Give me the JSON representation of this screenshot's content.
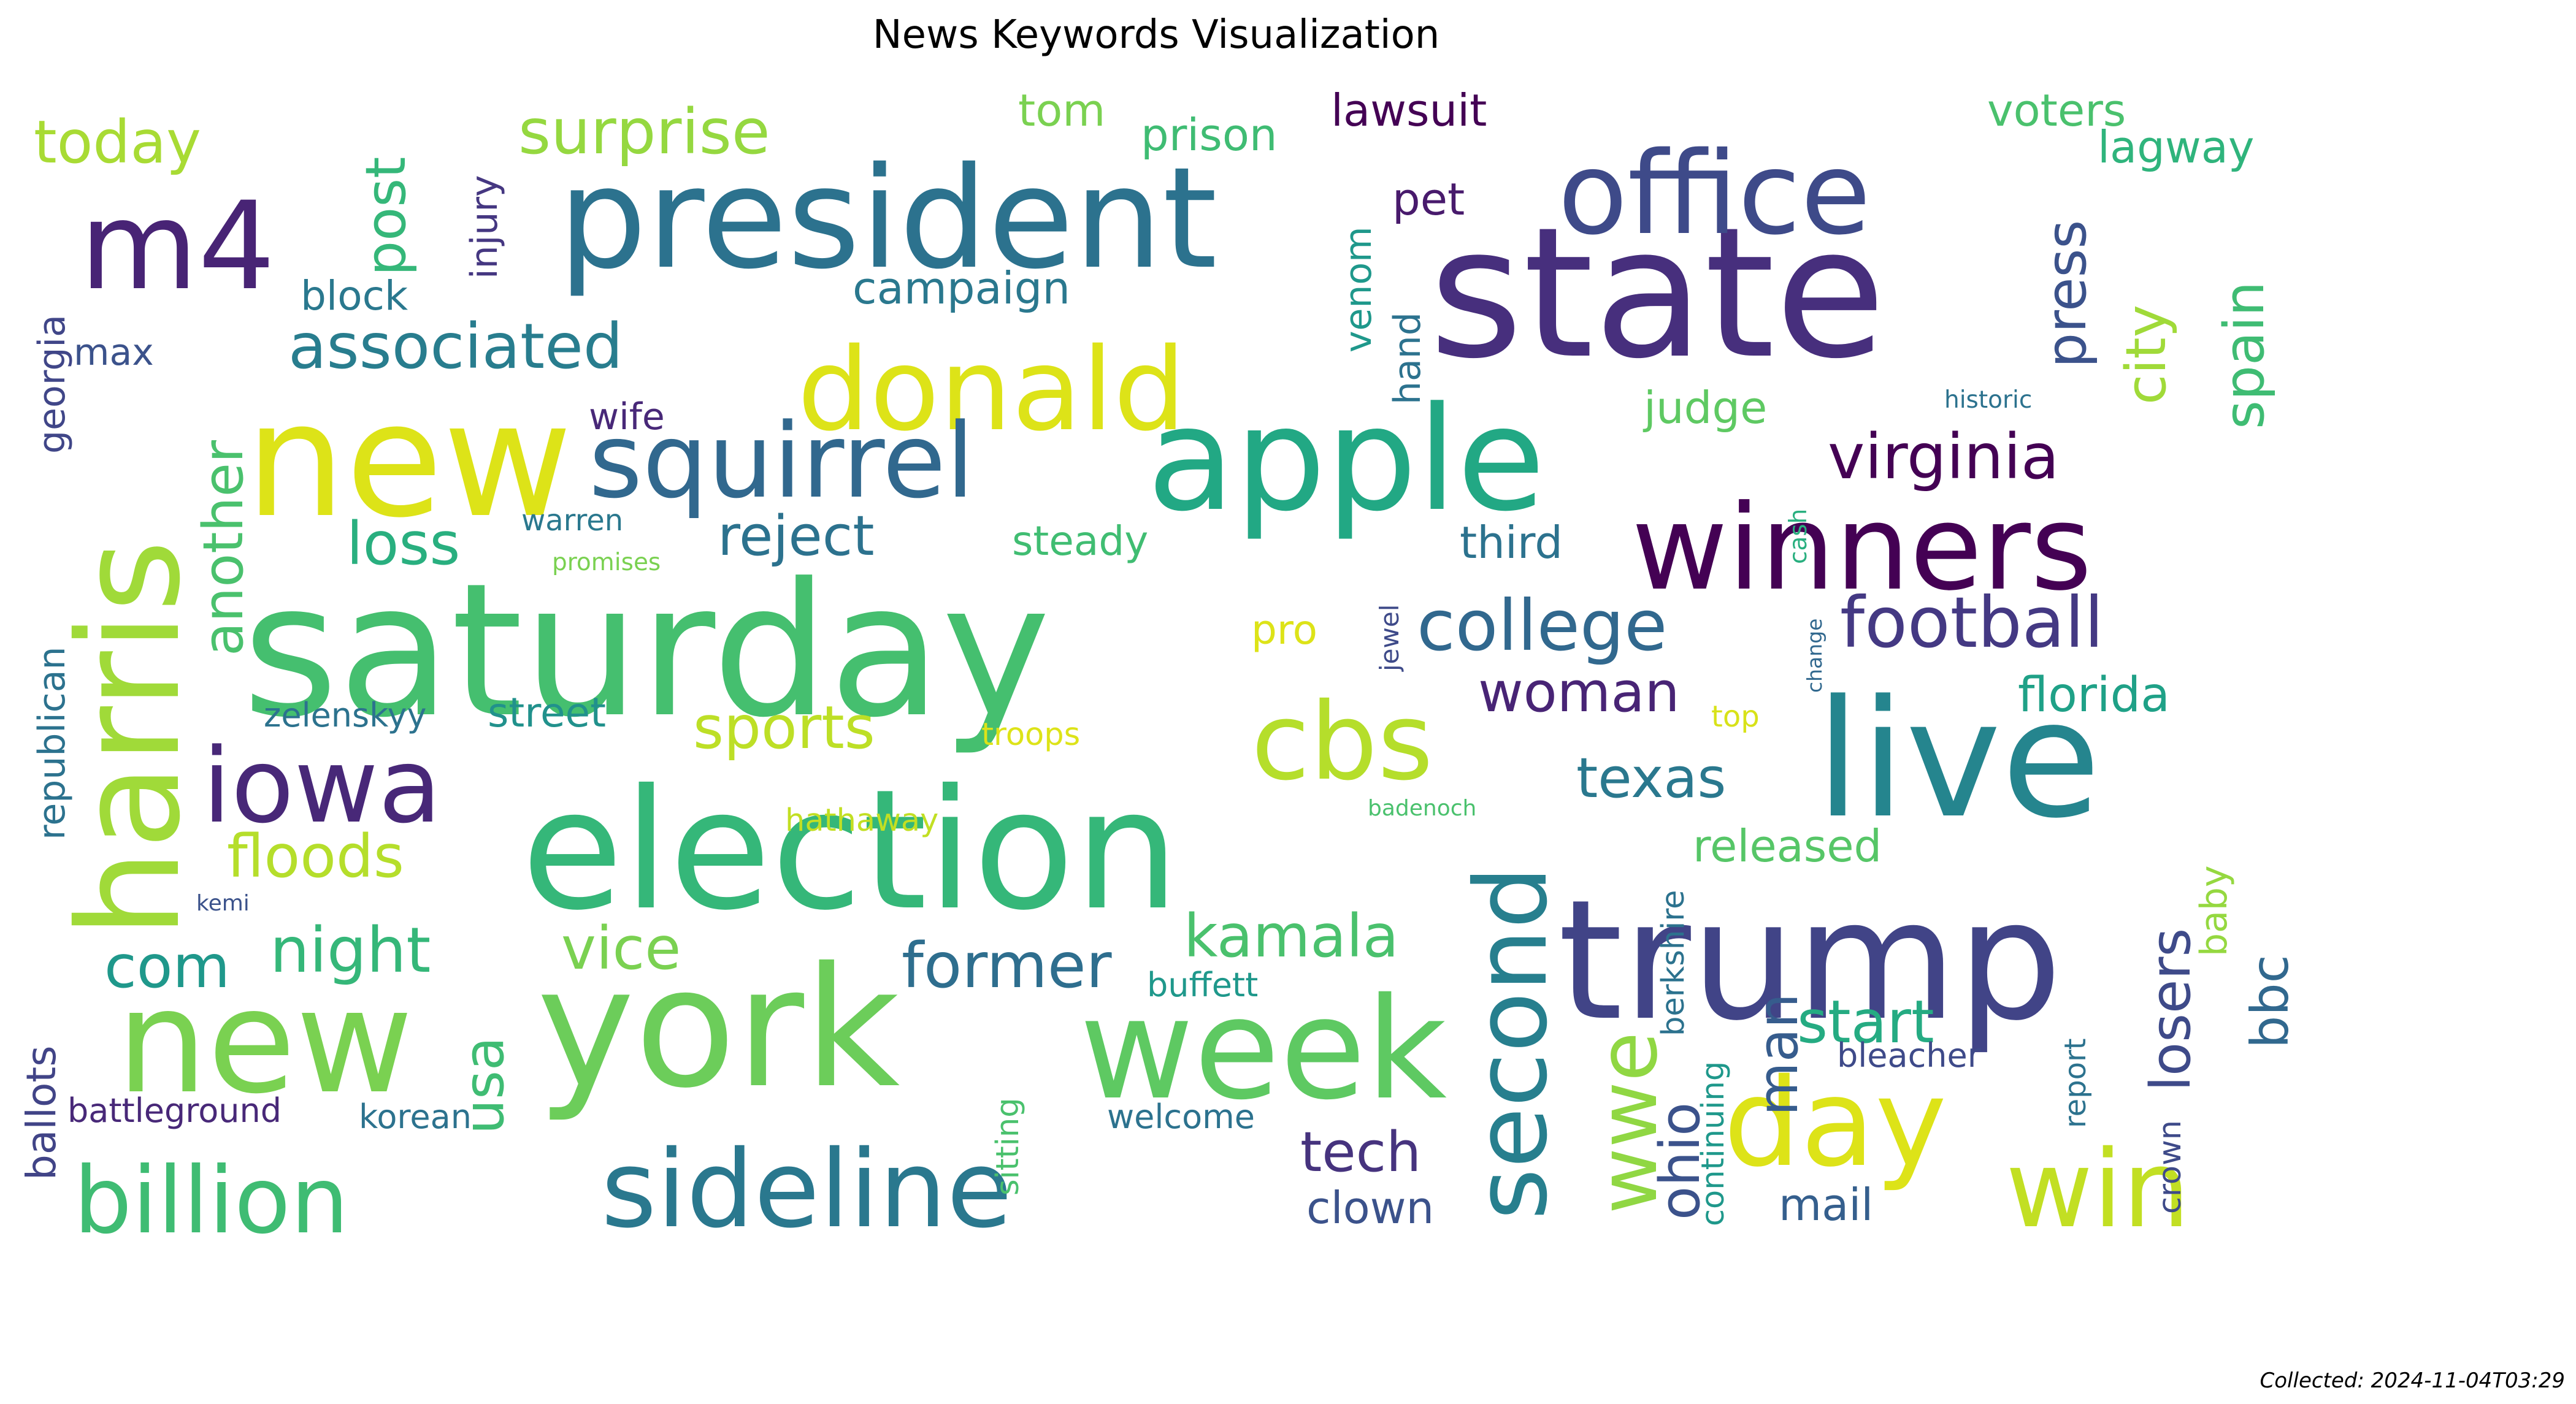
{
  "chart_data": {
    "type": "wordcloud",
    "title": "News Keywords Visualization",
    "colormap": "viridis",
    "words": [
      {
        "text": "saturday",
        "size": 1.0,
        "color": "#45bf6f"
      },
      {
        "text": "state",
        "size": 0.98,
        "color": "#472f7d"
      },
      {
        "text": "new",
        "size": 0.86,
        "color": "#dde318"
      },
      {
        "text": "york",
        "size": 0.9,
        "color": "#6ccd5a"
      },
      {
        "text": "election",
        "size": 0.9,
        "color": "#35b779"
      },
      {
        "text": "live",
        "size": 0.88,
        "color": "#25858e"
      },
      {
        "text": "trump",
        "size": 0.9,
        "color": "#414487"
      },
      {
        "text": "president",
        "size": 0.76,
        "color": "#2c728e"
      },
      {
        "text": "apple",
        "size": 0.78,
        "color": "#22a884"
      },
      {
        "text": "new",
        "size": 0.78,
        "color": "#7ad151"
      },
      {
        "text": "week",
        "size": 0.76,
        "color": "#5ec962"
      },
      {
        "text": "harris",
        "size": 0.76,
        "color": "#a0da39"
      },
      {
        "text": "office",
        "size": 0.62,
        "color": "#3e4a89"
      },
      {
        "text": "m4",
        "size": 0.66,
        "color": "#482475"
      },
      {
        "text": "winners",
        "size": 0.64,
        "color": "#440154"
      },
      {
        "text": "donald",
        "size": 0.62,
        "color": "#dde318"
      },
      {
        "text": "squirrel",
        "size": 0.56,
        "color": "#31688e"
      },
      {
        "text": "sideline",
        "size": 0.58,
        "color": "#2a788e"
      },
      {
        "text": "day",
        "size": 0.66,
        "color": "#dde318"
      },
      {
        "text": "win",
        "size": 0.58,
        "color": "#c2df23"
      },
      {
        "text": "cbs",
        "size": 0.58,
        "color": "#b5de2b"
      },
      {
        "text": "iowa",
        "size": 0.56,
        "color": "#482878"
      },
      {
        "text": "second",
        "size": 0.54,
        "color": "#277f8e"
      },
      {
        "text": "billion",
        "size": 0.5,
        "color": "#3fbc73"
      },
      {
        "text": "wwe",
        "size": 0.44,
        "color": "#90d743"
      },
      {
        "text": "college",
        "size": 0.38,
        "color": "#31688e"
      },
      {
        "text": "football",
        "size": 0.38,
        "color": "#443983"
      },
      {
        "text": "virginia",
        "size": 0.34,
        "color": "#440154"
      },
      {
        "text": "associated",
        "size": 0.34,
        "color": "#287d8e"
      },
      {
        "text": "surprise",
        "size": 0.34,
        "color": "#95d840"
      },
      {
        "text": "today",
        "size": 0.32,
        "color": "#a8db34"
      },
      {
        "text": "former",
        "size": 0.34,
        "color": "#2e6e8e"
      },
      {
        "text": "kamala",
        "size": 0.32,
        "color": "#4ac16d"
      },
      {
        "text": "night",
        "size": 0.34,
        "color": "#35b779"
      },
      {
        "text": "com",
        "size": 0.32,
        "color": "#1f988b"
      },
      {
        "text": "vice",
        "size": 0.32,
        "color": "#7ad151"
      },
      {
        "text": "floods",
        "size": 0.32,
        "color": "#b5de2b"
      },
      {
        "text": "sports",
        "size": 0.32,
        "color": "#bddf26"
      },
      {
        "text": "texas",
        "size": 0.3,
        "color": "#2a788e"
      },
      {
        "text": "woman",
        "size": 0.3,
        "color": "#482475"
      },
      {
        "text": "tech",
        "size": 0.3,
        "color": "#46337e"
      },
      {
        "text": "start",
        "size": 0.32,
        "color": "#25ab82"
      },
      {
        "text": "loss",
        "size": 0.32,
        "color": "#29af7f"
      },
      {
        "text": "reject",
        "size": 0.3,
        "color": "#2c728e"
      },
      {
        "text": "usa",
        "size": 0.3,
        "color": "#3fbc73"
      },
      {
        "text": "another",
        "size": 0.3,
        "color": "#4ac16d"
      },
      {
        "text": "post",
        "size": 0.3,
        "color": "#35b779"
      },
      {
        "text": "press",
        "size": 0.3,
        "color": "#3b528b"
      },
      {
        "text": "city",
        "size": 0.3,
        "color": "#a0da39"
      },
      {
        "text": "spain",
        "size": 0.3,
        "color": "#3fbc73"
      },
      {
        "text": "losers",
        "size": 0.3,
        "color": "#3e4a89"
      },
      {
        "text": "ohio",
        "size": 0.3,
        "color": "#3b528b"
      },
      {
        "text": "man",
        "size": 0.3,
        "color": "#365c8d"
      },
      {
        "text": "bbc",
        "size": 0.28,
        "color": "#31688e"
      },
      {
        "text": "florida",
        "size": 0.26,
        "color": "#1fa187"
      },
      {
        "text": "released",
        "size": 0.24,
        "color": "#56c667"
      },
      {
        "text": "mail",
        "size": 0.24,
        "color": "#355f8d"
      },
      {
        "text": "clown",
        "size": 0.24,
        "color": "#3b528b"
      },
      {
        "text": "voters",
        "size": 0.24,
        "color": "#4ac16d"
      },
      {
        "text": "lagway",
        "size": 0.24,
        "color": "#2fb47c"
      },
      {
        "text": "lawsuit",
        "size": 0.24,
        "color": "#440154"
      },
      {
        "text": "campaign",
        "size": 0.24,
        "color": "#2a788e"
      },
      {
        "text": "tom",
        "size": 0.24,
        "color": "#7ad151"
      },
      {
        "text": "prison",
        "size": 0.24,
        "color": "#3fbc73"
      },
      {
        "text": "pet",
        "size": 0.24,
        "color": "#481a6c"
      },
      {
        "text": "judge",
        "size": 0.24,
        "color": "#5ec962"
      },
      {
        "text": "third",
        "size": 0.24,
        "color": "#2c728e"
      },
      {
        "text": "steady",
        "size": 0.22,
        "color": "#40bd72"
      },
      {
        "text": "street",
        "size": 0.22,
        "color": "#21918c"
      },
      {
        "text": "block",
        "size": 0.22,
        "color": "#2a788e"
      },
      {
        "text": "max",
        "size": 0.2,
        "color": "#3b528b"
      },
      {
        "text": "wife",
        "size": 0.2,
        "color": "#482878"
      },
      {
        "text": "georgia",
        "size": 0.2,
        "color": "#404688"
      },
      {
        "text": "republican",
        "size": 0.2,
        "color": "#2c728e"
      },
      {
        "text": "injury",
        "size": 0.2,
        "color": "#453781"
      },
      {
        "text": "venom",
        "size": 0.2,
        "color": "#1f988b"
      },
      {
        "text": "hand",
        "size": 0.2,
        "color": "#2c728e"
      },
      {
        "text": "pro",
        "size": 0.22,
        "color": "#dde318"
      },
      {
        "text": "ballots",
        "size": 0.22,
        "color": "#414487"
      },
      {
        "text": "battleground",
        "size": 0.18,
        "color": "#482878"
      },
      {
        "text": "korean",
        "size": 0.18,
        "color": "#2c728e"
      },
      {
        "text": "welcome",
        "size": 0.18,
        "color": "#2c728e"
      },
      {
        "text": "bleacher",
        "size": 0.18,
        "color": "#3e4a89"
      },
      {
        "text": "buffett",
        "size": 0.18,
        "color": "#1f988b"
      },
      {
        "text": "berkshire",
        "size": 0.17,
        "color": "#2c728e"
      },
      {
        "text": "continuing",
        "size": 0.17,
        "color": "#1f988b"
      },
      {
        "text": "report",
        "size": 0.16,
        "color": "#2c728e"
      },
      {
        "text": "baby",
        "size": 0.2,
        "color": "#95d840"
      },
      {
        "text": "crown",
        "size": 0.17,
        "color": "#3e4a89"
      },
      {
        "text": "sitting",
        "size": 0.17,
        "color": "#4ac16d"
      },
      {
        "text": "zelenskyy",
        "size": 0.18,
        "color": "#2c728e"
      },
      {
        "text": "hathaway",
        "size": 0.17,
        "color": "#c2df23"
      },
      {
        "text": "troops",
        "size": 0.17,
        "color": "#dde318"
      },
      {
        "text": "top",
        "size": 0.16,
        "color": "#d8e219"
      },
      {
        "text": "warren",
        "size": 0.16,
        "color": "#2a788e"
      },
      {
        "text": "promises",
        "size": 0.13,
        "color": "#7ad151"
      },
      {
        "text": "historic",
        "size": 0.13,
        "color": "#2c728e"
      },
      {
        "text": "cash",
        "size": 0.13,
        "color": "#29af7f"
      },
      {
        "text": "jewel",
        "size": 0.14,
        "color": "#3e4a89"
      },
      {
        "text": "change",
        "size": 0.11,
        "color": "#31688e"
      },
      {
        "text": "badenoch",
        "size": 0.12,
        "color": "#4ac16d"
      },
      {
        "text": "kemi",
        "size": 0.12,
        "color": "#3b528b"
      }
    ]
  },
  "footer_text": "Collected: 2024-11-04T03:29"
}
